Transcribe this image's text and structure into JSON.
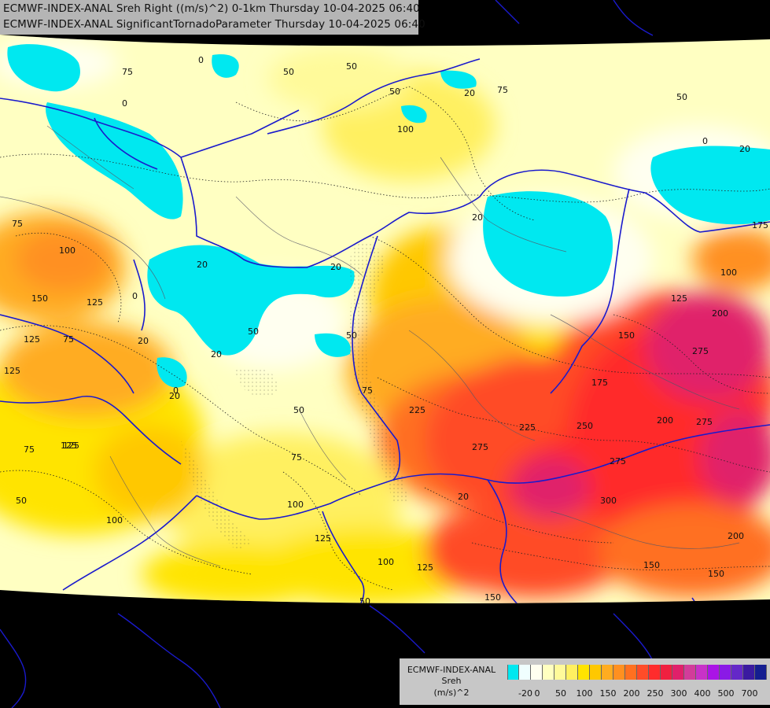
{
  "title": {
    "line1": "ECMWF-INDEX-ANAL Sreh Right ((m/s)^2) 0-1km Thursday 10-04-2025 06:40",
    "line2": "ECMWF-INDEX-ANAL SignificantTornadoParameter Thursday 10-04-2025 06:40"
  },
  "legend": {
    "name": "ECMWF-INDEX-ANAL",
    "variable": "Sreh",
    "unit": "(m/s)^2",
    "colors": [
      "#00e8f0",
      "#f0ffff",
      "#fffff0",
      "#ffffc0",
      "#fffa9a",
      "#fff060",
      "#ffe400",
      "#ffc800",
      "#ffac20",
      "#ff9020",
      "#ff7020",
      "#ff4c28",
      "#ff2c2c",
      "#f02040",
      "#e0206a",
      "#d23c9a",
      "#c832c8",
      "#aa14e6",
      "#8a1ae6",
      "#6428c8",
      "#3a1aa0",
      "#141e90"
    ],
    "tick_labels": [
      "-20",
      "0",
      "50",
      "100",
      "150",
      "200",
      "250",
      "300",
      "400",
      "500",
      "700"
    ]
  },
  "contour_labels": [
    "0",
    "50",
    "50",
    "75",
    "20",
    "75",
    "50",
    "0",
    "20",
    "0",
    "50",
    "100",
    "20",
    "75",
    "20",
    "100",
    "150",
    "125",
    "0",
    "125",
    "75",
    "20",
    "20",
    "50",
    "125",
    "50",
    "75",
    "125",
    "0",
    "20",
    "50",
    "225",
    "225",
    "275",
    "250",
    "175",
    "150",
    "125",
    "100",
    "200",
    "275",
    "200",
    "275",
    "300",
    "275",
    "175",
    "150",
    "100",
    "125",
    "100",
    "125",
    "150",
    "150",
    "200",
    "75",
    "50",
    "50",
    "125",
    "20",
    "75",
    "100",
    "20"
  ]
}
